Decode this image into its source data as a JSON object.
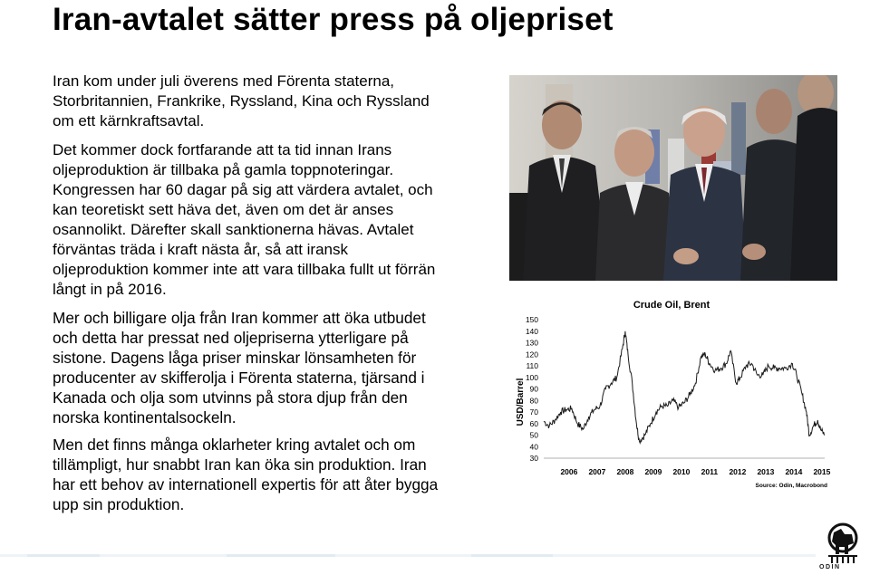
{
  "slide": {
    "title": "Iran-avtalet sätter press på oljepriset",
    "paragraphs": [
      "Iran kom under juli överens med Förenta staterna, Storbritannien, Frankrike, Ryssland, Kina och Ryssland om ett kärnkraftsavtal.",
      "Det kommer dock fortfarande att ta tid innan Irans oljeproduktion är tillbaka på gamla toppnoteringar. Kongressen har 60 dagar på sig att värdera avtalet, och kan teoretiskt sett häva det, även om det är anses osannolikt. Därefter skall sanktionerna hävas. Avtalet förväntas träda i kraft nästa år, så att iransk oljeproduktion kommer inte att vara tillbaka fullt ut förrän långt in på 2016.",
      "Mer och billigare olja från Iran kommer att öka utbudet och detta har pressat ned oljepriserna ytterligare på sistone. Dagens låga priser minskar lönsamheten för producenter av skifferolja i Förenta staterna, tjärsand i Kanada och olja som utvinns på stora djup från den norska kontinentalsockeln.",
      "Men det finns många oklarheter kring avtalet och om tillämpligt, hur snabbt Iran kan öka sin produktion. Iran har ett behov av internationell expertis för att åter bygga upp sin produktion."
    ]
  },
  "logo": {
    "text": "ODIN",
    "icon": "odin-horse-logo-icon"
  },
  "chart_data": {
    "type": "line",
    "title": "Crude Oil, Brent",
    "ylabel": "USD/Barrel",
    "xlabel": "",
    "source": "Source: Odin, Macrobond",
    "ylim": [
      30,
      150
    ],
    "yticks": [
      150,
      140,
      130,
      120,
      110,
      100,
      90,
      80,
      70,
      60,
      50,
      40,
      30
    ],
    "xticks": [
      "2006",
      "2007",
      "2008",
      "2009",
      "2010",
      "2011",
      "2012",
      "2013",
      "2014",
      "2015"
    ],
    "xlim": [
      2005.6,
      2015.6
    ],
    "grid": false,
    "series": [
      {
        "x": [
          2005.6,
          2005.8,
          2006.0,
          2006.2,
          2006.4,
          2006.6,
          2006.8,
          2007.0,
          2007.2,
          2007.4,
          2007.6,
          2007.8,
          2008.0,
          2008.2,
          2008.4,
          2008.5,
          2008.6,
          2008.75,
          2008.9,
          2009.0,
          2009.2,
          2009.4,
          2009.6,
          2009.8,
          2010.0,
          2010.2,
          2010.4,
          2010.6,
          2010.8,
          2011.0,
          2011.2,
          2011.35,
          2011.5,
          2011.7,
          2011.9,
          2012.1,
          2012.25,
          2012.45,
          2012.6,
          2012.8,
          2013.0,
          2013.2,
          2013.4,
          2013.6,
          2013.8,
          2014.0,
          2014.2,
          2014.45,
          2014.6,
          2014.8,
          2014.95,
          2015.05,
          2015.2,
          2015.35,
          2015.45,
          2015.6
        ],
        "values": [
          62,
          58,
          63,
          70,
          72,
          73,
          60,
          55,
          66,
          72,
          75,
          90,
          95,
          100,
          125,
          140,
          120,
          95,
          60,
          45,
          50,
          60,
          70,
          75,
          75,
          80,
          74,
          78,
          85,
          95,
          118,
          120,
          112,
          106,
          108,
          112,
          123,
          95,
          100,
          110,
          112,
          102,
          102,
          110,
          108,
          108,
          108,
          112,
          102,
          85,
          70,
          50,
          58,
          63,
          55,
          50
        ]
      }
    ]
  }
}
